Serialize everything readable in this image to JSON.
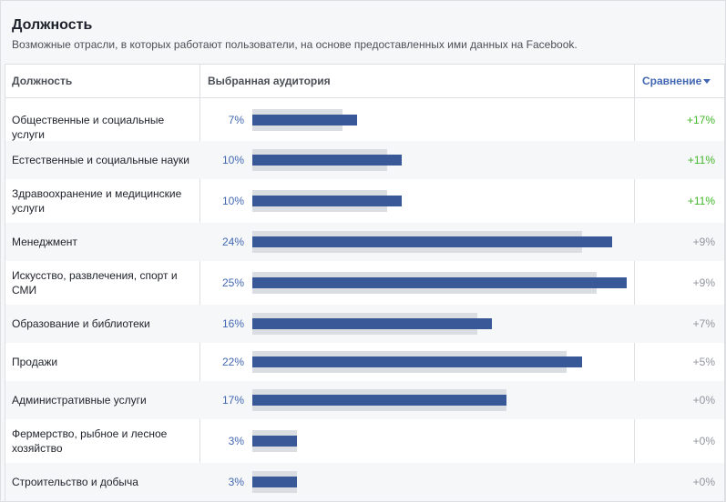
{
  "header": {
    "title": "Должность",
    "subtitle": "Возможные отрасли, в которых работают пользователи, на основе предоставленных ими данных на Facebook."
  },
  "table": {
    "col_job": "Должность",
    "col_audience": "Выбранная аудитория",
    "col_compare": "Сравнение"
  },
  "rows": [
    {
      "name": "Общественные и социальные услуги",
      "pct_label": "7%",
      "selected": 7,
      "baseline": 6,
      "compare": "+17%",
      "positive": true
    },
    {
      "name": "Естественные и социальные науки",
      "pct_label": "10%",
      "selected": 10,
      "baseline": 9,
      "compare": "+11%",
      "positive": true
    },
    {
      "name": "Здравоохранение и медицинские услуги",
      "pct_label": "10%",
      "selected": 10,
      "baseline": 9,
      "compare": "+11%",
      "positive": true
    },
    {
      "name": "Менеджмент",
      "pct_label": "24%",
      "selected": 24,
      "baseline": 22,
      "compare": "+9%",
      "positive": false
    },
    {
      "name": "Искусство, развлечения, спорт и СМИ",
      "pct_label": "25%",
      "selected": 25,
      "baseline": 23,
      "compare": "+9%",
      "positive": false
    },
    {
      "name": "Образование и библиотеки",
      "pct_label": "16%",
      "selected": 16,
      "baseline": 15,
      "compare": "+7%",
      "positive": false
    },
    {
      "name": "Продажи",
      "pct_label": "22%",
      "selected": 22,
      "baseline": 21,
      "compare": "+5%",
      "positive": false
    },
    {
      "name": "Административные услуги",
      "pct_label": "17%",
      "selected": 17,
      "baseline": 17,
      "compare": "+0%",
      "positive": false
    },
    {
      "name": "Фермерство, рыбное и лесное хозяйство",
      "pct_label": "3%",
      "selected": 3,
      "baseline": 3,
      "compare": "+0%",
      "positive": false
    },
    {
      "name": "Строительство и добыча",
      "pct_label": "3%",
      "selected": 3,
      "baseline": 3,
      "compare": "+0%",
      "positive": false
    }
  ],
  "colors": {
    "selected_bar": "#385898",
    "baseline_bar": "#dadde1",
    "positive": "#42b72a",
    "neutral": "#90949c",
    "link": "#4267b2"
  }
}
